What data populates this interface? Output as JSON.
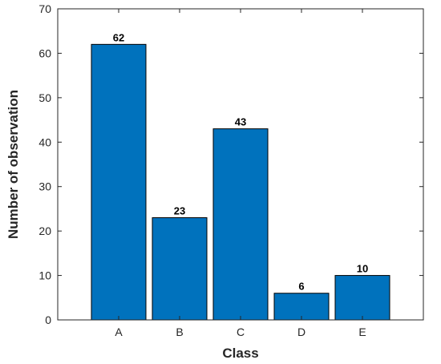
{
  "chart_data": {
    "type": "bar",
    "categories": [
      "A",
      "B",
      "C",
      "D",
      "E"
    ],
    "values": [
      62,
      23,
      43,
      6,
      10
    ],
    "data_labels": [
      "62",
      "23",
      "43",
      "6",
      "10"
    ],
    "xlabel": "Class",
    "ylabel": "Number of observation",
    "ylim": [
      0,
      70
    ],
    "yticks": [
      "0",
      "10",
      "20",
      "30",
      "40",
      "50",
      "60",
      "70"
    ],
    "grid": false,
    "box": true,
    "colors": {
      "bar_fill": "#0072BD",
      "bar_edge": "#000000",
      "axis": "#262626"
    }
  }
}
